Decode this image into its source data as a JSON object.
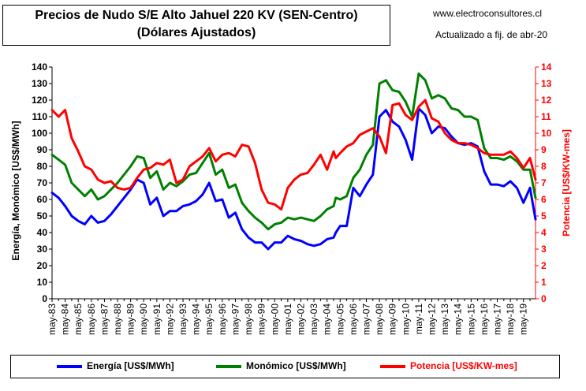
{
  "header": {
    "title_line1": "Precios de Nudo S/E Alto Jahuel 220 KV (SEN-Centro)",
    "title_line2": "(Dólares Ajustados)",
    "website": "www.electroconsultores.cl",
    "updated": "Actualizado a fij. de abr-20"
  },
  "colors": {
    "energia": "#0000ff",
    "monomico": "#008000",
    "potencia": "#ff0000",
    "left_axis": "#000000",
    "right_axis": "#ff0000"
  },
  "chart_data": {
    "type": "line",
    "title": "Precios de Nudo S/E Alto Jahuel 220 KV (SEN-Centro)",
    "subtitle": "(Dólares Ajustados)",
    "ylabel_left": "Energía, Monómico  [US$/MWh]",
    "ylabel_right": "Potencia  [US$/KW-mes]",
    "ylim_left": [
      0,
      140
    ],
    "ylim_right": [
      0,
      14
    ],
    "yticks_left": [
      "0",
      "10",
      "20",
      "30",
      "40",
      "50",
      "60",
      "70",
      "80",
      "90",
      "100",
      "110",
      "120",
      "130",
      "140"
    ],
    "yticks_right": [
      "0",
      "1",
      "2",
      "3",
      "4",
      "5",
      "6",
      "7",
      "8",
      "9",
      "10",
      "11",
      "12",
      "13",
      "14"
    ],
    "x_range": [
      1983.33,
      2020.25
    ],
    "x_tick_labels": [
      "may-83",
      "may-84",
      "may-85",
      "may-86",
      "may-87",
      "may-88",
      "may-89",
      "may-90",
      "may-91",
      "may-92",
      "may-93",
      "may-94",
      "may-95",
      "may-96",
      "may-97",
      "may-98",
      "may-99",
      "may-00",
      "may-01",
      "may-02",
      "may-03",
      "may-04",
      "may-05",
      "may-06",
      "may-07",
      "may-08",
      "may-09",
      "may-10",
      "may-11",
      "may-12",
      "may-13",
      "may-14",
      "may-15",
      "may-16",
      "may-17",
      "may-18",
      "may-19"
    ],
    "grid": false,
    "legend_position": "bottom",
    "series": [
      {
        "name": "Energía [US$/MWh]",
        "axis": "left",
        "x": [
          1983.33,
          1983.83,
          1984.33,
          1984.83,
          1985.33,
          1985.83,
          1986.33,
          1986.83,
          1987.33,
          1987.83,
          1988.33,
          1988.83,
          1989.33,
          1989.83,
          1990.33,
          1990.83,
          1991.33,
          1991.83,
          1992.33,
          1992.83,
          1993.33,
          1993.83,
          1994.33,
          1994.83,
          1995.33,
          1995.83,
          1996.33,
          1996.83,
          1997.33,
          1997.83,
          1998.33,
          1998.83,
          1999.33,
          1999.83,
          2000.33,
          2000.83,
          2001.33,
          2001.83,
          2002.33,
          2002.83,
          2003.33,
          2003.83,
          2004.33,
          2004.83,
          2005.0,
          2005.33,
          2005.83,
          2006.33,
          2006.83,
          2007.33,
          2007.83,
          2008.33,
          2008.83,
          2009.33,
          2009.83,
          2010.33,
          2010.83,
          2011.33,
          2011.83,
          2012.33,
          2012.83,
          2013.33,
          2013.83,
          2014.33,
          2014.83,
          2015.33,
          2015.83,
          2016.33,
          2016.83,
          2017.33,
          2017.83,
          2018.33,
          2018.83,
          2019.33,
          2019.83,
          2020.25
        ],
        "values": [
          64,
          61,
          56,
          50,
          47,
          45,
          50,
          46,
          47,
          51,
          56,
          61,
          66,
          72,
          70,
          57,
          61,
          50,
          53,
          53,
          56,
          57,
          59,
          63,
          70,
          59,
          60,
          49,
          52,
          42,
          37,
          34,
          34,
          30,
          34,
          34,
          38,
          36,
          35,
          33,
          32,
          33,
          36,
          37,
          40,
          44,
          44,
          67,
          62,
          69,
          75,
          110,
          114,
          107,
          104,
          96,
          84,
          115,
          111,
          100,
          104,
          103,
          98,
          94,
          93,
          94,
          92,
          77,
          69,
          69,
          68,
          71,
          67,
          58,
          67,
          48
        ]
      },
      {
        "name": "Monómico [US$/MWh]",
        "axis": "left",
        "x": [
          1983.33,
          1983.83,
          1984.33,
          1984.83,
          1985.33,
          1985.83,
          1986.33,
          1986.83,
          1987.33,
          1987.83,
          1988.33,
          1988.83,
          1989.33,
          1989.83,
          1990.33,
          1990.83,
          1991.33,
          1991.83,
          1992.33,
          1992.83,
          1993.33,
          1993.83,
          1994.33,
          1994.83,
          1995.33,
          1995.83,
          1996.33,
          1996.83,
          1997.33,
          1997.83,
          1998.33,
          1998.83,
          1999.33,
          1999.83,
          2000.33,
          2000.83,
          2001.33,
          2001.83,
          2002.33,
          2002.83,
          2003.33,
          2003.83,
          2004.33,
          2004.83,
          2005.0,
          2005.33,
          2005.83,
          2006.33,
          2006.83,
          2007.33,
          2007.83,
          2008.33,
          2008.83,
          2009.33,
          2009.83,
          2010.33,
          2010.83,
          2011.33,
          2011.83,
          2012.33,
          2012.83,
          2013.33,
          2013.83,
          2014.33,
          2014.83,
          2015.33,
          2015.83,
          2016.33,
          2016.83,
          2017.33,
          2017.83,
          2018.33,
          2018.83,
          2019.33,
          2019.83,
          2020.25
        ],
        "values": [
          87,
          84,
          81,
          70,
          66,
          62,
          66,
          60,
          62,
          66,
          70,
          75,
          80,
          86,
          85,
          73,
          77,
          66,
          70,
          68,
          71,
          75,
          76,
          82,
          88,
          75,
          78,
          67,
          69,
          58,
          53,
          49,
          46,
          42,
          45,
          46,
          49,
          48,
          49,
          48,
          47,
          50,
          54,
          56,
          61,
          60,
          62,
          73,
          78,
          87,
          93,
          130,
          132,
          126,
          125,
          119,
          110,
          136,
          132,
          121,
          123,
          121,
          115,
          114,
          110,
          110,
          108,
          91,
          85,
          85,
          84,
          86,
          83,
          78,
          78,
          61
        ]
      },
      {
        "name": "Potencia [US$/KW-mes]",
        "axis": "right",
        "x": [
          1983.33,
          1983.83,
          1984.33,
          1984.83,
          1985.33,
          1985.83,
          1986.33,
          1986.83,
          1987.33,
          1987.83,
          1988.33,
          1988.83,
          1989.33,
          1989.83,
          1990.33,
          1990.83,
          1991.33,
          1991.83,
          1992.33,
          1992.83,
          1993.33,
          1993.83,
          1994.33,
          1994.83,
          1995.33,
          1995.83,
          1996.33,
          1996.83,
          1997.33,
          1997.83,
          1998.33,
          1998.83,
          1999.33,
          1999.83,
          2000.33,
          2000.83,
          2001.33,
          2001.83,
          2002.33,
          2002.83,
          2003.33,
          2003.83,
          2004.33,
          2004.83,
          2005.0,
          2005.33,
          2005.83,
          2006.33,
          2006.83,
          2007.33,
          2007.83,
          2008.33,
          2008.83,
          2009.33,
          2009.83,
          2010.33,
          2010.83,
          2011.33,
          2011.83,
          2012.33,
          2012.83,
          2013.33,
          2013.83,
          2014.33,
          2014.83,
          2015.33,
          2015.83,
          2016.33,
          2016.83,
          2017.33,
          2017.83,
          2018.33,
          2018.83,
          2019.33,
          2019.83,
          2020.25
        ],
        "values": [
          11.4,
          11.0,
          11.4,
          9.7,
          8.9,
          8.0,
          7.8,
          7.2,
          7.0,
          7.1,
          6.7,
          6.6,
          6.7,
          7.3,
          7.8,
          7.9,
          8.2,
          8.1,
          8.4,
          7.0,
          7.2,
          8.0,
          8.3,
          8.6,
          9.1,
          8.3,
          8.7,
          8.8,
          8.6,
          9.3,
          9.2,
          8.2,
          6.6,
          5.8,
          5.7,
          5.4,
          6.7,
          7.2,
          7.5,
          7.6,
          8.1,
          8.7,
          7.8,
          8.9,
          8.5,
          8.8,
          9.2,
          9.4,
          9.9,
          10.1,
          10.3,
          9.8,
          8.8,
          11.7,
          11.8,
          11.1,
          10.8,
          11.6,
          12.0,
          10.9,
          10.7,
          10.0,
          9.6,
          9.4,
          9.4,
          9.3,
          9.1,
          8.8,
          8.7,
          8.7,
          8.7,
          8.9,
          8.5,
          7.9,
          8.5,
          7.2
        ]
      }
    ]
  },
  "legend": {
    "energia": "Energía [US$/MWh]",
    "monomico": "Monómico [US$/MWh]",
    "potencia": "Potencia [US$/KW-mes]"
  }
}
